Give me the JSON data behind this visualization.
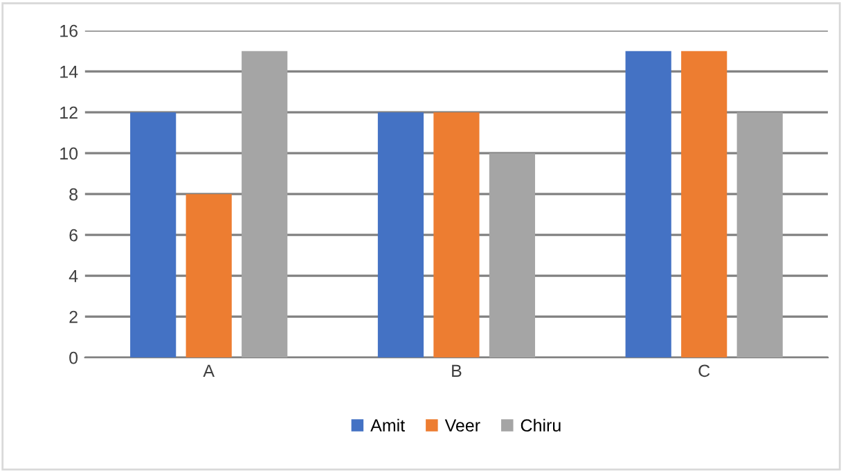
{
  "chart_data": {
    "type": "bar",
    "categories": [
      "A",
      "B",
      "C"
    ],
    "series": [
      {
        "name": "Amit",
        "color": "#4472c4",
        "values": [
          12,
          12,
          15
        ]
      },
      {
        "name": "Veer",
        "color": "#ed7d31",
        "values": [
          8,
          12,
          15
        ]
      },
      {
        "name": "Chiru",
        "color": "#a5a5a5",
        "values": [
          15,
          10,
          12
        ]
      }
    ],
    "ylim": [
      0,
      16
    ],
    "yticks": [
      0,
      2,
      4,
      6,
      8,
      10,
      12,
      14,
      16
    ],
    "grid": "y",
    "legend": "bottom"
  }
}
